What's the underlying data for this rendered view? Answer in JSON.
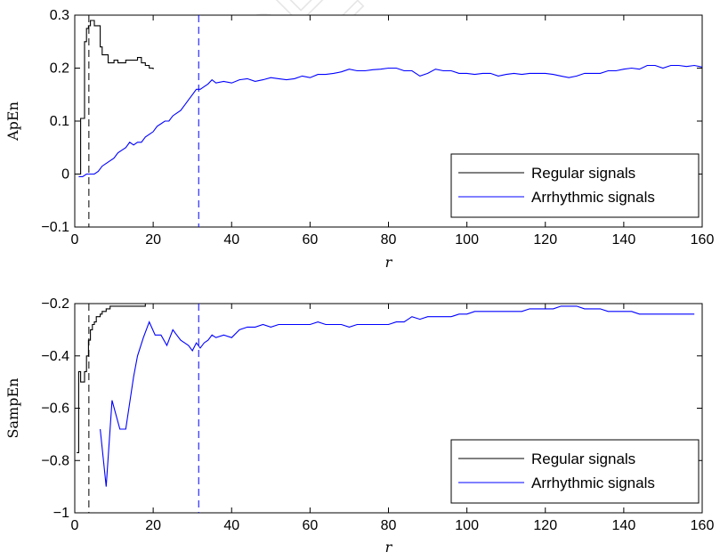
{
  "watermark": "ACCEPTED",
  "chart_data": [
    {
      "type": "line",
      "title": "",
      "xlabel": "r",
      "ylabel": "ApEn",
      "xlim": [
        0,
        160
      ],
      "ylim": [
        -0.1,
        0.3
      ],
      "xticks": [
        0,
        20,
        40,
        60,
        80,
        100,
        120,
        140,
        160
      ],
      "yticks": [
        -0.1,
        0,
        0.1,
        0.2,
        0.3
      ],
      "ytick_labels": [
        "−0.1",
        "0",
        "0.1",
        "0.2",
        "0.3"
      ],
      "grid": false,
      "legend_position": "bottom-right",
      "colors": {
        "regular": "#000000",
        "arrhythmic": "#0000ff"
      },
      "vlines": [
        {
          "x": 3.6,
          "color": "#000000",
          "style": "dashed"
        },
        {
          "x": 31.6,
          "color": "#0000ff",
          "style": "dashed"
        }
      ],
      "series": [
        {
          "name": "Regular signals",
          "color": "#000000",
          "step": true,
          "x": [
            0,
            1,
            1.5,
            2,
            2.5,
            3,
            3.5,
            4,
            4.5,
            5,
            6,
            6.5,
            7,
            8,
            8.5,
            9,
            10,
            11,
            12,
            13,
            14,
            15,
            16,
            17,
            18,
            19,
            20
          ],
          "y": [
            0,
            0,
            0.105,
            0.105,
            0.25,
            0.275,
            0.28,
            0.29,
            0.29,
            0.28,
            0.28,
            0.24,
            0.225,
            0.225,
            0.21,
            0.21,
            0.215,
            0.21,
            0.21,
            0.215,
            0.215,
            0.215,
            0.22,
            0.21,
            0.205,
            0.2,
            0.198
          ]
        },
        {
          "name": "Arrhythmic signals",
          "color": "#0000ff",
          "step": false,
          "x": [
            1,
            2,
            3,
            4,
            5,
            6,
            7,
            8,
            9,
            10,
            11,
            12,
            13,
            14,
            15,
            16,
            17,
            18,
            19,
            20,
            21,
            22,
            23,
            24,
            25,
            26,
            27,
            28,
            29,
            30,
            31,
            32,
            33,
            34,
            35,
            36,
            38,
            40,
            42,
            44,
            46,
            48,
            50,
            52,
            54,
            56,
            58,
            60,
            62,
            64,
            66,
            68,
            70,
            72,
            74,
            76,
            78,
            80,
            82,
            84,
            86,
            88,
            90,
            92,
            94,
            96,
            98,
            100,
            102,
            104,
            106,
            108,
            110,
            112,
            114,
            116,
            118,
            120,
            122,
            124,
            126,
            128,
            130,
            132,
            134,
            136,
            138,
            140,
            142,
            144,
            146,
            148,
            150,
            152,
            154,
            156,
            158,
            160
          ],
          "y": [
            -0.005,
            -0.005,
            0,
            0,
            0,
            0.005,
            0.015,
            0.02,
            0.025,
            0.03,
            0.04,
            0.045,
            0.05,
            0.06,
            0.055,
            0.06,
            0.06,
            0.07,
            0.075,
            0.08,
            0.09,
            0.095,
            0.1,
            0.1,
            0.11,
            0.115,
            0.12,
            0.13,
            0.14,
            0.15,
            0.16,
            0.16,
            0.165,
            0.17,
            0.178,
            0.172,
            0.175,
            0.172,
            0.178,
            0.18,
            0.175,
            0.178,
            0.182,
            0.18,
            0.178,
            0.18,
            0.185,
            0.182,
            0.188,
            0.188,
            0.19,
            0.193,
            0.198,
            0.195,
            0.195,
            0.197,
            0.198,
            0.2,
            0.2,
            0.195,
            0.195,
            0.185,
            0.19,
            0.198,
            0.195,
            0.195,
            0.19,
            0.19,
            0.188,
            0.19,
            0.19,
            0.185,
            0.188,
            0.19,
            0.188,
            0.19,
            0.19,
            0.19,
            0.188,
            0.185,
            0.182,
            0.185,
            0.19,
            0.19,
            0.19,
            0.195,
            0.195,
            0.198,
            0.2,
            0.198,
            0.205,
            0.205,
            0.2,
            0.205,
            0.205,
            0.203,
            0.205,
            0.202
          ]
        }
      ]
    },
    {
      "type": "line",
      "title": "",
      "xlabel": "r",
      "ylabel": "SampEn",
      "xlim": [
        0,
        160
      ],
      "ylim": [
        -1,
        -0.2
      ],
      "xticks": [
        0,
        20,
        40,
        60,
        80,
        100,
        120,
        140,
        160
      ],
      "yticks": [
        -1,
        -0.8,
        -0.6,
        -0.4,
        -0.2
      ],
      "ytick_labels": [
        "−1",
        "−0.8",
        "−0.6",
        "−0.4",
        "−0.2"
      ],
      "grid": false,
      "legend_position": "bottom-right",
      "colors": {
        "regular": "#000000",
        "arrhythmic": "#0000ff"
      },
      "vlines": [
        {
          "x": 3.6,
          "color": "#000000",
          "style": "dashed"
        },
        {
          "x": 31.6,
          "color": "#0000ff",
          "style": "dashed"
        }
      ],
      "series": [
        {
          "name": "Regular signals",
          "color": "#000000",
          "step": true,
          "x": [
            0.5,
            1,
            1.5,
            2,
            2.5,
            3,
            3.5,
            4,
            4.5,
            5,
            5.5,
            6,
            6.5,
            7,
            7.5,
            8,
            8.5,
            9,
            10,
            11,
            12,
            13,
            14,
            15,
            16,
            17,
            18,
            19,
            20
          ],
          "y": [
            -0.77,
            -0.46,
            -0.5,
            -0.5,
            -0.46,
            -0.4,
            -0.34,
            -0.3,
            -0.28,
            -0.27,
            -0.25,
            -0.25,
            -0.24,
            -0.23,
            -0.23,
            -0.22,
            -0.22,
            -0.21,
            -0.21,
            -0.21,
            -0.21,
            -0.21,
            -0.21,
            -0.21,
            -0.21,
            -0.21,
            -0.2,
            -0.2,
            -0.2
          ]
        },
        {
          "name": "Arrhythmic signals",
          "color": "#0000ff",
          "step": false,
          "x": [
            6.5,
            8,
            9.5,
            11.5,
            13,
            15,
            16,
            17.5,
            19,
            20.5,
            22,
            23.5,
            25,
            26,
            27,
            28,
            29,
            30,
            31,
            32,
            33,
            34,
            35,
            36,
            38,
            40,
            42,
            44,
            46,
            48,
            50,
            52,
            54,
            56,
            58,
            60,
            62,
            64,
            66,
            68,
            70,
            72,
            74,
            76,
            78,
            80,
            82,
            84,
            86,
            88,
            90,
            92,
            94,
            96,
            98,
            100,
            102,
            104,
            106,
            108,
            110,
            112,
            114,
            116,
            118,
            120,
            122,
            124,
            126,
            128,
            130,
            132,
            134,
            136,
            138,
            140,
            142,
            144,
            146,
            148,
            150,
            152,
            154,
            156,
            158
          ],
          "y": [
            -0.68,
            -0.9,
            -0.57,
            -0.68,
            -0.68,
            -0.48,
            -0.4,
            -0.33,
            -0.27,
            -0.32,
            -0.32,
            -0.36,
            -0.3,
            -0.32,
            -0.34,
            -0.35,
            -0.36,
            -0.38,
            -0.35,
            -0.37,
            -0.35,
            -0.34,
            -0.32,
            -0.33,
            -0.32,
            -0.33,
            -0.3,
            -0.29,
            -0.29,
            -0.28,
            -0.29,
            -0.28,
            -0.28,
            -0.28,
            -0.28,
            -0.28,
            -0.27,
            -0.28,
            -0.28,
            -0.28,
            -0.29,
            -0.28,
            -0.28,
            -0.28,
            -0.28,
            -0.28,
            -0.27,
            -0.27,
            -0.25,
            -0.26,
            -0.25,
            -0.25,
            -0.25,
            -0.25,
            -0.24,
            -0.24,
            -0.23,
            -0.23,
            -0.23,
            -0.23,
            -0.23,
            -0.23,
            -0.23,
            -0.22,
            -0.22,
            -0.22,
            -0.22,
            -0.21,
            -0.21,
            -0.21,
            -0.22,
            -0.22,
            -0.22,
            -0.23,
            -0.23,
            -0.23,
            -0.23,
            -0.24,
            -0.24,
            -0.24,
            -0.24,
            -0.24,
            -0.24,
            -0.24,
            -0.24
          ]
        }
      ]
    }
  ]
}
